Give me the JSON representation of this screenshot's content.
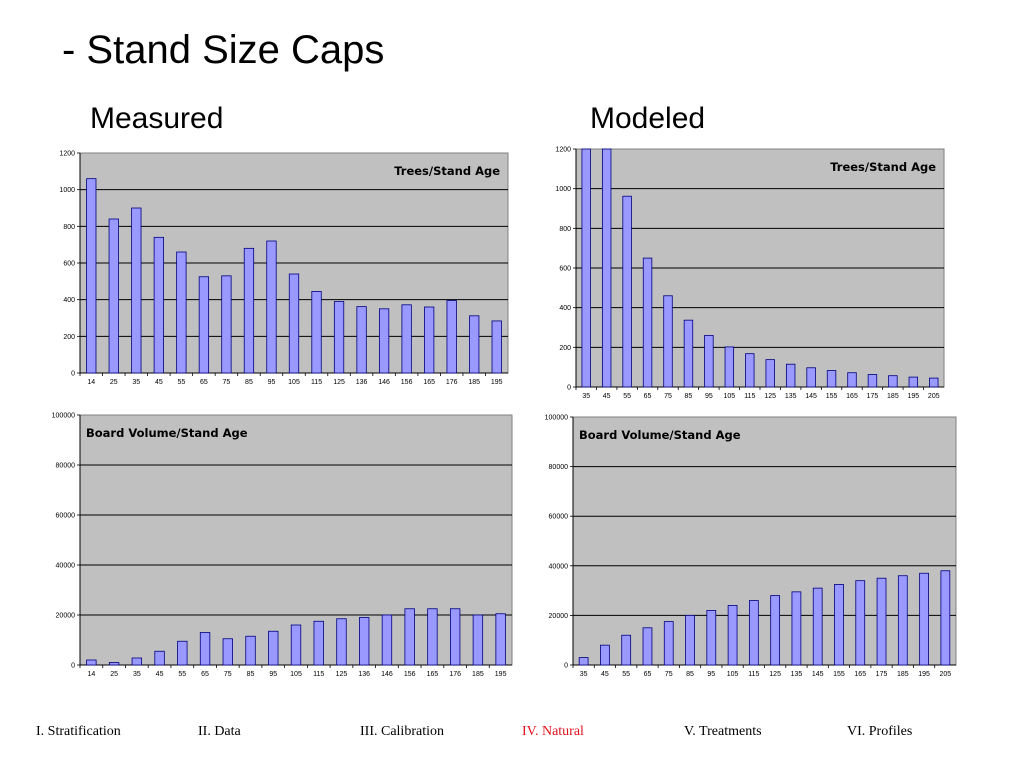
{
  "slide": {
    "title": "- Stand Size Caps",
    "measured_label": "Measured",
    "modeled_label": "Modeled"
  },
  "colors": {
    "plot_bg": "#c0c0c0",
    "bar_fill": "#9999ff",
    "bar_stroke": "#000080",
    "active_nav": "#e0141e"
  },
  "chart_data": [
    {
      "id": "measured-trees",
      "type": "bar",
      "title": "Trees/Stand Age",
      "categories": [
        "14",
        "25",
        "35",
        "45",
        "55",
        "65",
        "75",
        "85",
        "95",
        "105",
        "115",
        "125",
        "136",
        "146",
        "156",
        "165",
        "176",
        "185",
        "195"
      ],
      "values": [
        1060,
        840,
        900,
        740,
        660,
        525,
        530,
        680,
        720,
        540,
        445,
        390,
        362,
        350,
        372,
        360,
        395,
        312,
        284
      ],
      "ylim": [
        0,
        1200
      ],
      "yticks": [
        "0",
        "200",
        "400",
        "600",
        "800",
        "1000",
        "1200"
      ],
      "grid": true,
      "title_position": "top-right"
    },
    {
      "id": "modeled-trees",
      "type": "bar",
      "title": "Trees/Stand Age",
      "categories": [
        "35",
        "45",
        "55",
        "65",
        "75",
        "85",
        "95",
        "105",
        "115",
        "125",
        "135",
        "145",
        "155",
        "165",
        "175",
        "185",
        "195",
        "205"
      ],
      "values": [
        1200,
        1200,
        962,
        650,
        460,
        337,
        260,
        202,
        168,
        138,
        115,
        97,
        83,
        72,
        63,
        57,
        50,
        45
      ],
      "ylim": [
        0,
        1200
      ],
      "yticks": [
        "0",
        "200",
        "400",
        "600",
        "800",
        "1000",
        "1200"
      ],
      "grid": true,
      "title_position": "top-right"
    },
    {
      "id": "measured-board",
      "type": "bar",
      "title": "Board Volume/Stand Age",
      "categories": [
        "14",
        "25",
        "35",
        "45",
        "55",
        "65",
        "75",
        "85",
        "95",
        "105",
        "115",
        "125",
        "136",
        "146",
        "156",
        "165",
        "176",
        "185",
        "195"
      ],
      "values": [
        2000,
        1000,
        2800,
        5500,
        9500,
        13000,
        10500,
        11500,
        13500,
        16000,
        17500,
        18500,
        19000,
        20000,
        22500,
        22500,
        22500,
        20000,
        20500
      ],
      "ylim": [
        0,
        100000
      ],
      "yticks": [
        "0",
        "20000",
        "40000",
        "60000",
        "80000",
        "100000"
      ],
      "grid": true,
      "title_position": "top-left"
    },
    {
      "id": "modeled-board",
      "type": "bar",
      "title": "Board Volume/Stand Age",
      "categories": [
        "35",
        "45",
        "55",
        "65",
        "75",
        "85",
        "95",
        "105",
        "115",
        "125",
        "135",
        "145",
        "155",
        "165",
        "175",
        "185",
        "195",
        "205"
      ],
      "values": [
        3000,
        8000,
        12000,
        15000,
        17500,
        20000,
        22000,
        24000,
        26000,
        28000,
        29500,
        31000,
        32500,
        34000,
        35000,
        36000,
        37000,
        38000
      ],
      "ylim": [
        0,
        100000
      ],
      "yticks": [
        "0",
        "20000",
        "40000",
        "60000",
        "80000",
        "100000"
      ],
      "grid": true,
      "title_position": "top-left"
    }
  ],
  "nav": {
    "items": [
      {
        "label": "I. Stratification",
        "active": false
      },
      {
        "label": "II. Data",
        "active": false
      },
      {
        "label": "III. Calibration",
        "active": false
      },
      {
        "label": "IV. Natural",
        "active": true
      },
      {
        "label": "V. Treatments",
        "active": false
      },
      {
        "label": "VI. Profiles",
        "active": false
      }
    ]
  }
}
